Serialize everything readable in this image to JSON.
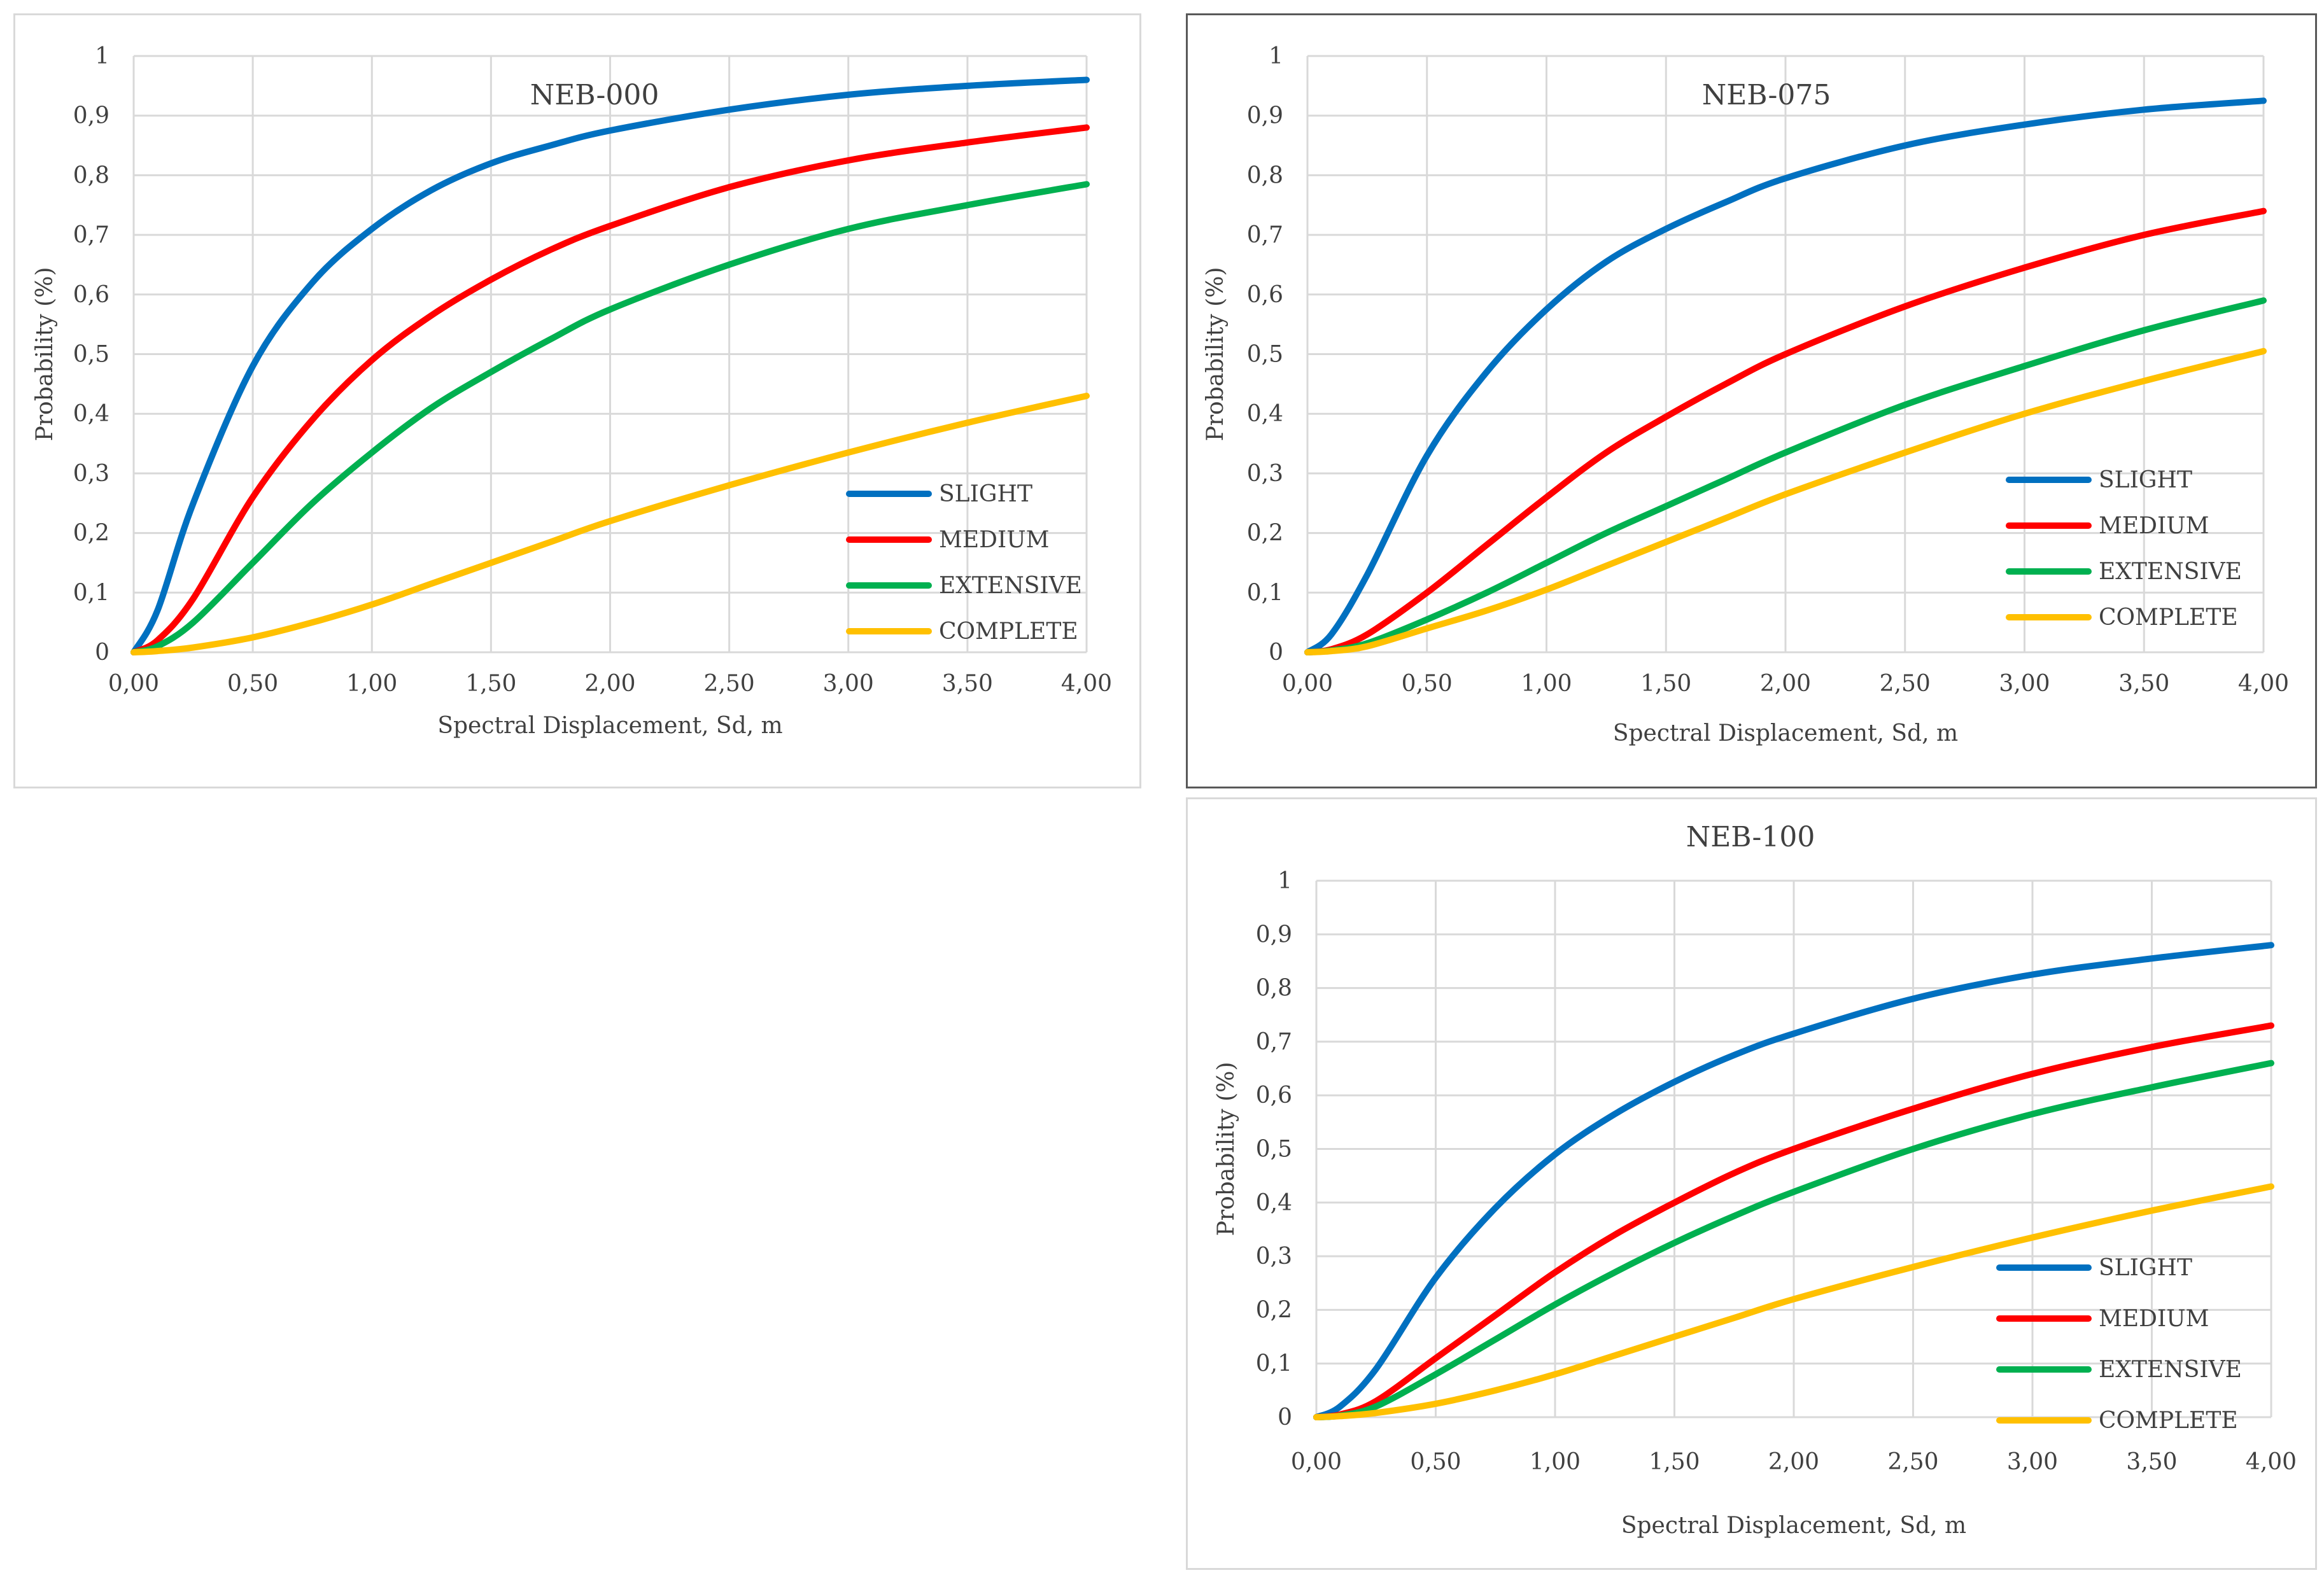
{
  "chart_data": [
    {
      "type": "line",
      "title": "NEB-000",
      "xlabel": "Spectral Displacement, Sd, m",
      "ylabel": "Probability (%)",
      "xlim": [
        0,
        4
      ],
      "ylim": [
        0,
        1
      ],
      "x_ticks": [
        "0,00",
        "0,50",
        "1,00",
        "1,50",
        "2,00",
        "2,50",
        "3,00",
        "3,50",
        "4,00"
      ],
      "y_ticks": [
        "0",
        "0,1",
        "0,2",
        "0,3",
        "0,4",
        "0,5",
        "0,6",
        "0,7",
        "0,8",
        "0,9",
        "1"
      ],
      "grid": true,
      "legend_position": "right-bottom",
      "x": [
        0,
        0.1,
        0.25,
        0.5,
        0.75,
        1.0,
        1.25,
        1.5,
        1.75,
        2.0,
        2.5,
        3.0,
        3.5,
        4.0
      ],
      "series": [
        {
          "name": "SLIGHT",
          "color": "#0070c0",
          "values": [
            0,
            0.07,
            0.25,
            0.48,
            0.62,
            0.71,
            0.775,
            0.82,
            0.85,
            0.875,
            0.91,
            0.935,
            0.95,
            0.96
          ]
        },
        {
          "name": "MEDIUM",
          "color": "#ff0000",
          "values": [
            0,
            0.02,
            0.09,
            0.26,
            0.39,
            0.49,
            0.565,
            0.625,
            0.675,
            0.715,
            0.78,
            0.825,
            0.855,
            0.88
          ]
        },
        {
          "name": "EXTENSIVE",
          "color": "#00b050",
          "values": [
            0,
            0.01,
            0.05,
            0.15,
            0.25,
            0.335,
            0.41,
            0.47,
            0.525,
            0.575,
            0.65,
            0.71,
            0.75,
            0.785
          ]
        },
        {
          "name": "COMPLETE",
          "color": "#ffc000",
          "values": [
            0,
            0.002,
            0.008,
            0.025,
            0.05,
            0.08,
            0.115,
            0.15,
            0.185,
            0.22,
            0.28,
            0.335,
            0.385,
            0.43
          ]
        }
      ]
    },
    {
      "type": "line",
      "title": "NEB-075",
      "xlabel": "Spectral Displacement, Sd, m",
      "ylabel": "Probability (%)",
      "xlim": [
        0,
        4
      ],
      "ylim": [
        0,
        1
      ],
      "x_ticks": [
        "0,00",
        "0,50",
        "1,00",
        "1,50",
        "2,00",
        "2,50",
        "3,00",
        "3,50",
        "4,00"
      ],
      "y_ticks": [
        "0",
        "0,1",
        "0,2",
        "0,3",
        "0,4",
        "0,5",
        "0,6",
        "0,7",
        "0,8",
        "0,9",
        "1"
      ],
      "grid": true,
      "legend_position": "right-bottom",
      "x": [
        0,
        0.1,
        0.25,
        0.5,
        0.75,
        1.0,
        1.25,
        1.5,
        1.75,
        2.0,
        2.5,
        3.0,
        3.5,
        4.0
      ],
      "series": [
        {
          "name": "SLIGHT",
          "color": "#0070c0",
          "values": [
            0,
            0.03,
            0.13,
            0.33,
            0.47,
            0.575,
            0.655,
            0.71,
            0.755,
            0.795,
            0.85,
            0.885,
            0.91,
            0.925
          ]
        },
        {
          "name": "MEDIUM",
          "color": "#ff0000",
          "values": [
            0,
            0.005,
            0.03,
            0.1,
            0.18,
            0.26,
            0.335,
            0.395,
            0.45,
            0.5,
            0.58,
            0.645,
            0.7,
            0.74
          ]
        },
        {
          "name": "EXTENSIVE",
          "color": "#00b050",
          "values": [
            0,
            0.003,
            0.015,
            0.055,
            0.1,
            0.15,
            0.2,
            0.245,
            0.29,
            0.335,
            0.415,
            0.48,
            0.54,
            0.59
          ]
        },
        {
          "name": "COMPLETE",
          "color": "#ffc000",
          "values": [
            0,
            0.002,
            0.01,
            0.04,
            0.07,
            0.105,
            0.145,
            0.185,
            0.225,
            0.265,
            0.335,
            0.4,
            0.455,
            0.505
          ]
        }
      ]
    },
    {
      "type": "line",
      "title": "NEB-100",
      "xlabel": "Spectral Displacement, Sd, m",
      "ylabel": "Probability (%)",
      "xlim": [
        0,
        4
      ],
      "ylim": [
        0,
        1
      ],
      "x_ticks": [
        "0,00",
        "0,50",
        "1,00",
        "1,50",
        "2,00",
        "2,50",
        "3,00",
        "3,50",
        "4,00"
      ],
      "y_ticks": [
        "0",
        "0,1",
        "0,2",
        "0,3",
        "0,4",
        "0,5",
        "0,6",
        "0,7",
        "0,8",
        "0,9",
        "1"
      ],
      "grid": true,
      "legend_position": "right-bottom",
      "x": [
        0,
        0.1,
        0.25,
        0.5,
        0.75,
        1.0,
        1.25,
        1.5,
        1.75,
        2.0,
        2.5,
        3.0,
        3.5,
        4.0
      ],
      "series": [
        {
          "name": "SLIGHT",
          "color": "#0070c0",
          "values": [
            0,
            0.02,
            0.09,
            0.26,
            0.39,
            0.49,
            0.565,
            0.625,
            0.675,
            0.715,
            0.78,
            0.825,
            0.855,
            0.88
          ]
        },
        {
          "name": "MEDIUM",
          "color": "#ff0000",
          "values": [
            0,
            0.005,
            0.03,
            0.11,
            0.19,
            0.27,
            0.34,
            0.4,
            0.455,
            0.5,
            0.575,
            0.64,
            0.69,
            0.73
          ]
        },
        {
          "name": "EXTENSIVE",
          "color": "#00b050",
          "values": [
            0,
            0.003,
            0.02,
            0.08,
            0.145,
            0.21,
            0.27,
            0.325,
            0.375,
            0.42,
            0.5,
            0.565,
            0.615,
            0.66
          ]
        },
        {
          "name": "COMPLETE",
          "color": "#ffc000",
          "values": [
            0,
            0.002,
            0.008,
            0.025,
            0.05,
            0.08,
            0.115,
            0.15,
            0.185,
            0.22,
            0.28,
            0.335,
            0.385,
            0.43
          ]
        }
      ]
    }
  ]
}
